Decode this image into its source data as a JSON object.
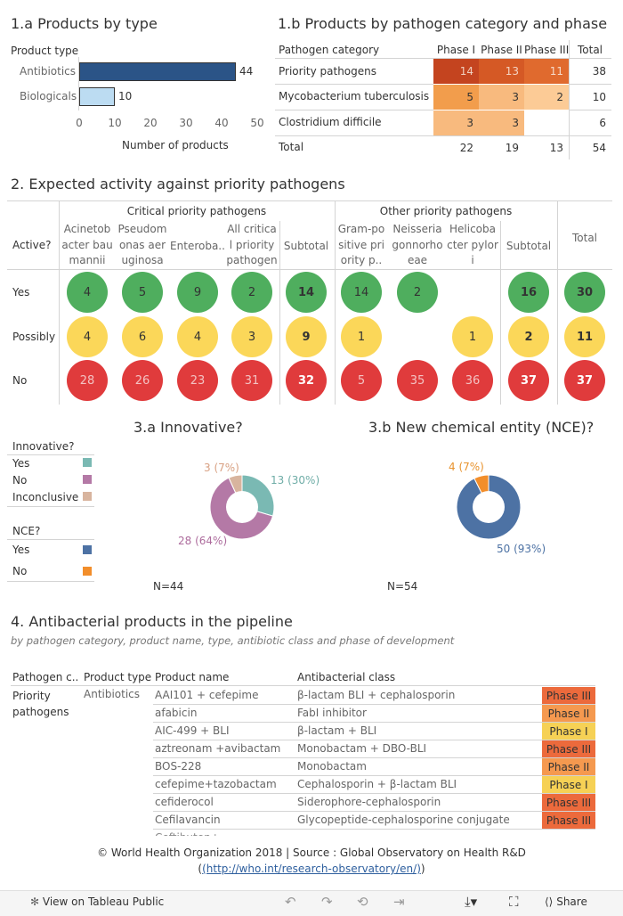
{
  "s1a": {
    "title": "1.a Products by type",
    "header": "Product type",
    "xlabel": "Number of products",
    "ticks": [
      "0",
      "10",
      "20",
      "30",
      "40",
      "50"
    ]
  },
  "s1b": {
    "title": "1.b Products by pathogen category and phase",
    "col_headers": [
      "Pathogen category",
      "Phase I",
      "Phase II",
      "Phase III",
      "Total"
    ],
    "rows": [
      {
        "label": "Priority pathogens",
        "p1": "14",
        "p2": "13",
        "p3": "11",
        "total": "38"
      },
      {
        "label": "Mycobacterium tuberculosis",
        "p1": "5",
        "p2": "3",
        "p3": "2",
        "total": "10"
      },
      {
        "label": "Clostridium difficile",
        "p1": "3",
        "p2": "3",
        "p3": "",
        "total": "6"
      }
    ],
    "total_row": {
      "label": "Total",
      "p1": "22",
      "p2": "19",
      "p3": "13",
      "total": "54"
    }
  },
  "s2": {
    "title": "2. Expected activity against priority pathogens",
    "group1": "Critical priority pathogens",
    "group2": "Other priority pathogens",
    "active_label": "Active?",
    "columns": [
      "Acinetobacter baumannii",
      "Pseudomonas aeruginosa",
      "Enteroba..",
      "All critical priority pathogens",
      "Subtotal",
      "Gram-positive priority p..",
      "Neisseria gonnorhoeae",
      "Helicobacter pylori",
      "Subtotal",
      "Total"
    ],
    "row_labels": [
      "Yes",
      "Possibly",
      "No"
    ],
    "yes": [
      "4",
      "5",
      "9",
      "2",
      "14",
      "14",
      "2",
      "",
      "16",
      "30"
    ],
    "possibly": [
      "4",
      "6",
      "4",
      "3",
      "9",
      "1",
      "",
      "1",
      "2",
      "11"
    ],
    "no": [
      "28",
      "26",
      "23",
      "31",
      "32",
      "5",
      "35",
      "36",
      "37",
      "37"
    ]
  },
  "s3": {
    "title_a": "3.a Innovative?",
    "title_b": "3.b New chemical entity (NCE)?",
    "legend_a_title": "Innovative?",
    "legend_a": [
      "Yes",
      "No",
      "Inconclusive"
    ],
    "legend_b_title": "NCE?",
    "legend_b": [
      "Yes",
      "No"
    ],
    "n_a": "N=44",
    "n_b": "N=54",
    "label_a_yes": "13 (30%)",
    "label_a_no": "28 (64%)",
    "label_a_inc": "3 (7%)",
    "label_b_yes": "50 (93%)",
    "label_b_no": "4 (7%)"
  },
  "s4": {
    "title": "4. Antibacterial products in the pipeline",
    "subtitle": "by pathogen category, product name, type, antibiotic class and phase of development",
    "headers": [
      "Pathogen c..",
      "Product type",
      "Product name",
      "Antibacterial class"
    ],
    "group_category": "Priority pathogens",
    "group_type": "Antibiotics",
    "rows": [
      {
        "name": "AAI101 + cefepime",
        "cls": "β-lactam BLI + cephalosporin",
        "phase": "Phase III"
      },
      {
        "name": "afabicin",
        "cls": "FabI inhibitor",
        "phase": "Phase II"
      },
      {
        "name": "AIC-499 + BLI",
        "cls": "β-lactam + BLI",
        "phase": "Phase I"
      },
      {
        "name": "aztreonam +avibactam",
        "cls": "Monobactam + DBO-BLI",
        "phase": "Phase III"
      },
      {
        "name": "BOS-228",
        "cls": "Monobactam",
        "phase": "Phase II"
      },
      {
        "name": "cefepime+tazobactam",
        "cls": "Cephalosporin + β-lactam BLI",
        "phase": "Phase I"
      },
      {
        "name": "cefiderocol",
        "cls": "Siderophore-cephalosporin",
        "phase": "Phase III"
      },
      {
        "name": "Cefilavancin",
        "cls": "Glycopeptide-cephalosporine conjugate",
        "phase": "Phase III"
      }
    ]
  },
  "footer": {
    "line1": "© World Health Organization 2018 | Source : Global Observatory on Health R&D",
    "line2": "(http://who.int/research-observatory/en/)"
  },
  "toolbar": {
    "view_label": "View on Tableau Public",
    "share_label": "Share"
  },
  "colors": {
    "bar_antibiotics": "#2b5487",
    "bar_biologicals": "#bcdcf2",
    "yes": "#4fae5e",
    "possibly": "#fbd759",
    "no": "#e03b3c",
    "innov_yes": "#7ab9b3",
    "innov_no": "#b479a6",
    "innov_inc": "#d8b49e",
    "nce_yes": "#4d72a4",
    "nce_no": "#f28e2b",
    "phase_I": "#f6d155",
    "phase_II": "#f5994f",
    "phase_III": "#ec6a3c"
  },
  "chart_data": [
    {
      "type": "bar",
      "title": "1.a Products by type",
      "categories": [
        "Antibiotics",
        "Biologicals"
      ],
      "values": [
        44,
        10
      ],
      "xlabel": "Number of products",
      "xlim": [
        0,
        50
      ]
    },
    {
      "type": "pie",
      "title": "3.a Innovative?",
      "labels": [
        "Yes",
        "No",
        "Inconclusive"
      ],
      "values": [
        13,
        28,
        3
      ]
    },
    {
      "type": "pie",
      "title": "3.b New chemical entity (NCE)?",
      "labels": [
        "Yes",
        "No"
      ],
      "values": [
        50,
        4
      ]
    }
  ]
}
